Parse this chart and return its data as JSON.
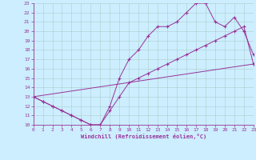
{
  "xlabel": "Windchill (Refroidissement éolien,°C)",
  "xlim": [
    0,
    23
  ],
  "ylim": [
    10,
    23
  ],
  "xticks": [
    0,
    1,
    2,
    3,
    4,
    5,
    6,
    7,
    8,
    9,
    10,
    11,
    12,
    13,
    14,
    15,
    16,
    17,
    18,
    19,
    20,
    21,
    22,
    23
  ],
  "yticks": [
    10,
    11,
    12,
    13,
    14,
    15,
    16,
    17,
    18,
    19,
    20,
    21,
    22,
    23
  ],
  "line_color": "#993399",
  "bg_color": "#cceeff",
  "grid_color": "#aacccc",
  "line1_x": [
    0,
    1,
    2,
    3,
    4,
    5,
    6,
    7,
    8,
    9,
    10,
    11,
    12,
    13,
    14,
    15,
    16,
    17,
    18,
    19,
    20,
    21,
    22,
    23
  ],
  "line1_y": [
    13.0,
    12.5,
    12.0,
    11.5,
    11.0,
    10.5,
    10.0,
    10.0,
    11.5,
    13.0,
    14.5,
    15.0,
    15.5,
    16.0,
    16.5,
    17.0,
    17.5,
    18.0,
    18.5,
    19.0,
    19.5,
    20.0,
    20.5,
    16.5
  ],
  "line2_x": [
    0,
    1,
    2,
    3,
    4,
    5,
    6,
    7,
    8,
    9,
    10,
    11,
    12,
    13,
    14,
    15,
    16,
    17,
    18,
    19,
    20,
    21,
    22,
    23
  ],
  "line2_y": [
    13.0,
    12.5,
    12.0,
    11.5,
    11.0,
    10.5,
    10.0,
    10.0,
    12.0,
    15.0,
    17.0,
    18.0,
    19.5,
    20.5,
    20.5,
    21.0,
    22.0,
    23.0,
    23.0,
    21.0,
    20.5,
    21.5,
    20.0,
    17.5
  ],
  "line3_x": [
    0,
    23
  ],
  "line3_y": [
    13.0,
    16.5
  ]
}
